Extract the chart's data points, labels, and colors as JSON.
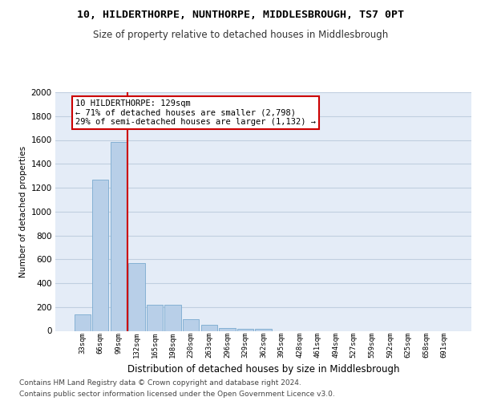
{
  "title": "10, HILDERTHORPE, NUNTHORPE, MIDDLESBROUGH, TS7 0PT",
  "subtitle": "Size of property relative to detached houses in Middlesbrough",
  "xlabel": "Distribution of detached houses by size in Middlesbrough",
  "ylabel": "Number of detached properties",
  "categories": [
    "33sqm",
    "66sqm",
    "99sqm",
    "132sqm",
    "165sqm",
    "198sqm",
    "230sqm",
    "263sqm",
    "296sqm",
    "329sqm",
    "362sqm",
    "395sqm",
    "428sqm",
    "461sqm",
    "494sqm",
    "527sqm",
    "559sqm",
    "592sqm",
    "625sqm",
    "658sqm",
    "691sqm"
  ],
  "values": [
    140,
    1270,
    1580,
    570,
    220,
    220,
    95,
    50,
    25,
    20,
    20,
    0,
    0,
    0,
    0,
    0,
    0,
    0,
    0,
    0,
    0
  ],
  "bar_color": "#b8cfe8",
  "bar_edge_color": "#7aaacf",
  "vline_color": "#cc0000",
  "vline_bar_index": 2.5,
  "annotation_text": "10 HILDERTHORPE: 129sqm\n← 71% of detached houses are smaller (2,798)\n29% of semi-detached houses are larger (1,132) →",
  "annotation_box_facecolor": "#ffffff",
  "annotation_box_edgecolor": "#cc0000",
  "grid_color": "#c0cfe0",
  "background_color": "#e4ecf7",
  "footer_line1": "Contains HM Land Registry data © Crown copyright and database right 2024.",
  "footer_line2": "Contains public sector information licensed under the Open Government Licence v3.0.",
  "ylim": [
    0,
    2000
  ],
  "yticks": [
    0,
    200,
    400,
    600,
    800,
    1000,
    1200,
    1400,
    1600,
    1800,
    2000
  ],
  "title_fontsize": 9.5,
  "subtitle_fontsize": 8.5,
  "xlabel_fontsize": 8.5,
  "ylabel_fontsize": 7.5,
  "tick_fontsize": 7.5,
  "xtick_fontsize": 6.5,
  "annotation_fontsize": 7.5,
  "footer_fontsize": 6.5
}
